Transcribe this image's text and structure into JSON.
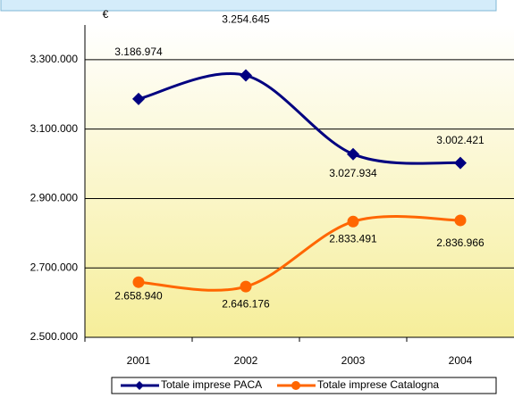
{
  "chart_data": {
    "type": "line",
    "unit": "€",
    "categories": [
      "2001",
      "2002",
      "2003",
      "2004"
    ],
    "series": [
      {
        "name": "Totale imprese PACA",
        "color": "#000080",
        "values": [
          3186974,
          3254645,
          3027934,
          3002421
        ],
        "value_labels": [
          "3.186.974",
          "3.254.645",
          "3.027.934",
          "3.002.421"
        ]
      },
      {
        "name": "Totale imprese Catalogna",
        "color": "#ff6600",
        "values": [
          2658940,
          2646176,
          2833491,
          2836966
        ],
        "value_labels": [
          "2.658.940",
          "2.646.176",
          "2.833.491",
          "2.836.966"
        ]
      }
    ],
    "ylim": [
      2500000,
      3400000
    ],
    "yticks": [
      {
        "value": 2500000,
        "label": "2.500.000"
      },
      {
        "value": 2700000,
        "label": "2.700.000"
      },
      {
        "value": 2900000,
        "label": "2.900.000"
      },
      {
        "value": 3100000,
        "label": "3.100.000"
      },
      {
        "value": 3300000,
        "label": "3.300.000"
      }
    ],
    "grid": true,
    "smooth": true,
    "legend": "bottom"
  }
}
